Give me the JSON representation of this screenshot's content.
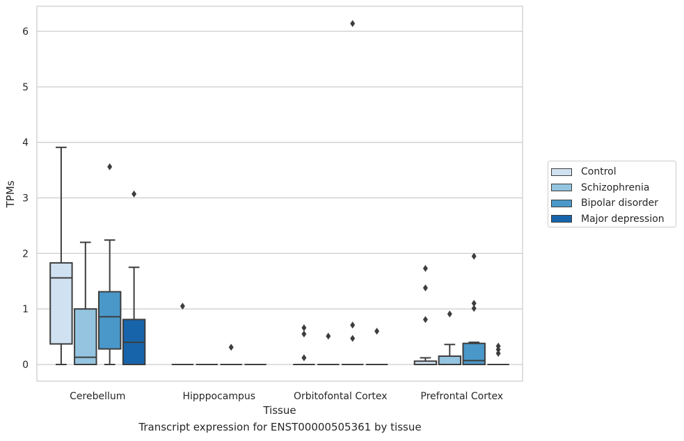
{
  "chart_data": {
    "type": "boxplot",
    "caption": "Transcript expression for ENST00000505361 by tissue",
    "xlabel": "Tissue",
    "ylabel": "TPMs",
    "ylim": [
      -0.3,
      6.45
    ],
    "yticks": [
      0,
      1,
      2,
      3,
      4,
      5,
      6
    ],
    "grid": "horizontal",
    "legend_position": "right",
    "categories": [
      "Cerebellum",
      "Hipppocampus",
      "Orbitofontal Cortex",
      "Prefrontal Cortex"
    ],
    "series": [
      {
        "name": "Control",
        "color": "#d0e1f2"
      },
      {
        "name": "Schizophrenia",
        "color": "#94c4df"
      },
      {
        "name": "Bipolar disorder",
        "color": "#4a98c9"
      },
      {
        "name": "Major depression",
        "color": "#1764ab"
      }
    ],
    "boxes": [
      [
        {
          "whislo": 0,
          "q1": 0.37,
          "med": 1.56,
          "q3": 1.83,
          "whishi": 3.91,
          "fliers": []
        },
        {
          "whislo": 0,
          "q1": 0,
          "med": 0.13,
          "q3": 1.0,
          "whishi": 2.2,
          "fliers": []
        },
        {
          "whislo": 0,
          "q1": 0.28,
          "med": 0.86,
          "q3": 1.31,
          "whishi": 2.24,
          "fliers": [
            3.56
          ]
        },
        {
          "whislo": 0,
          "q1": 0,
          "med": 0.4,
          "q3": 0.81,
          "whishi": 1.75,
          "fliers": [
            3.07
          ]
        }
      ],
      [
        {
          "whislo": 0,
          "q1": 0,
          "med": 0,
          "q3": 0,
          "whishi": 0,
          "fliers": [
            1.05
          ]
        },
        {
          "whislo": 0,
          "q1": 0,
          "med": 0,
          "q3": 0,
          "whishi": 0,
          "fliers": []
        },
        {
          "whislo": 0,
          "q1": 0,
          "med": 0,
          "q3": 0,
          "whishi": 0,
          "fliers": [
            0.31
          ]
        },
        {
          "whislo": 0,
          "q1": 0,
          "med": 0,
          "q3": 0,
          "whishi": 0,
          "fliers": []
        }
      ],
      [
        {
          "whislo": 0,
          "q1": 0,
          "med": 0,
          "q3": 0,
          "whishi": 0,
          "fliers": [
            0.12,
            0.55,
            0.66
          ]
        },
        {
          "whislo": 0,
          "q1": 0,
          "med": 0,
          "q3": 0,
          "whishi": 0,
          "fliers": [
            0.51
          ]
        },
        {
          "whislo": 0,
          "q1": 0,
          "med": 0,
          "q3": 0,
          "whishi": 0,
          "fliers": [
            0.47,
            0.71,
            6.14
          ]
        },
        {
          "whislo": 0,
          "q1": 0,
          "med": 0,
          "q3": 0,
          "whishi": 0,
          "fliers": [
            0.6
          ]
        }
      ],
      [
        {
          "whislo": 0,
          "q1": 0,
          "med": 0,
          "q3": 0.06,
          "whishi": 0.12,
          "fliers": [
            0.81,
            1.38,
            1.73
          ]
        },
        {
          "whislo": 0,
          "q1": 0,
          "med": 0,
          "q3": 0.15,
          "whishi": 0.36,
          "fliers": [
            0.91
          ]
        },
        {
          "whislo": 0,
          "q1": 0,
          "med": 0.07,
          "q3": 0.38,
          "whishi": 0.4,
          "fliers": [
            1.01,
            1.1,
            1.95
          ]
        },
        {
          "whislo": 0,
          "q1": 0,
          "med": 0,
          "q3": 0,
          "whishi": 0,
          "fliers": [
            0.2,
            0.27,
            0.33
          ]
        }
      ]
    ]
  }
}
